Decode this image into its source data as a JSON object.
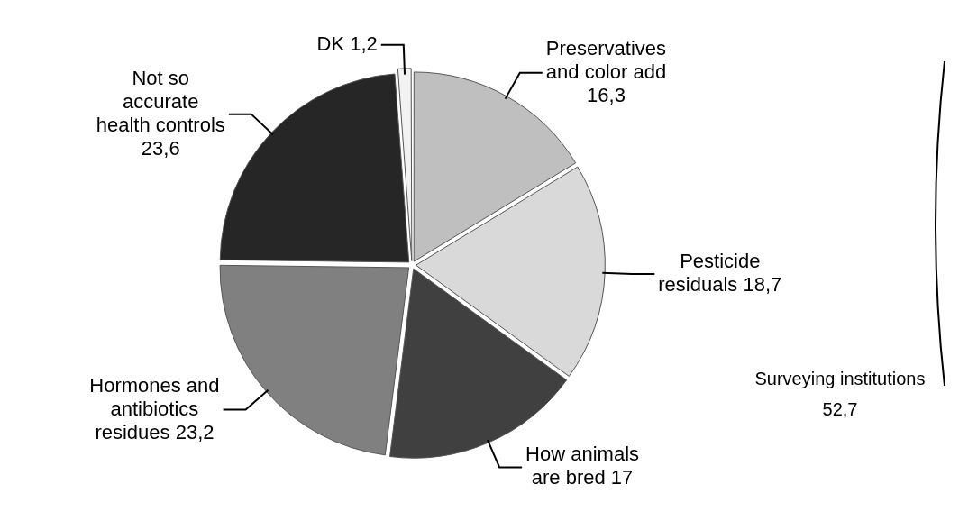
{
  "chart_data": {
    "type": "pie",
    "categories": [
      "Preservatives and color add",
      "Pesticide residuals",
      "How animals are bred",
      "Hormones and antibiotics residues",
      "Not so accurate health controls",
      "DK"
    ],
    "values": [
      16.3,
      18.7,
      17,
      23.2,
      23.6,
      1.2
    ],
    "value_labels": [
      "16,3",
      "18,7",
      "17",
      "23,2",
      "23,6",
      "1,2"
    ],
    "colors": [
      "#bfbfbf",
      "#d9d9d9",
      "#404040",
      "#808080",
      "#262626",
      "#f2f2f2"
    ],
    "annotations": [
      "Surveying institutions",
      "52,7"
    ],
    "legend": false
  }
}
